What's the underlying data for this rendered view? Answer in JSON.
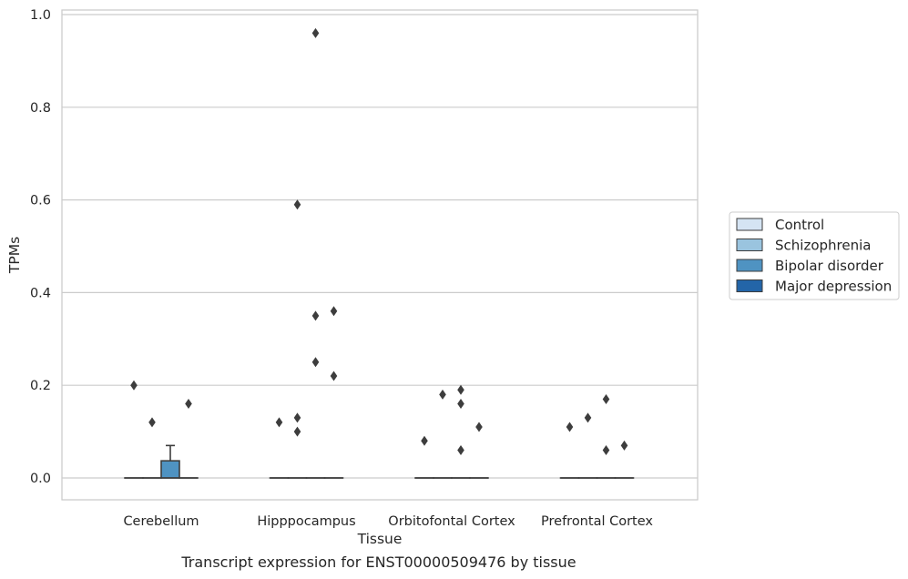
{
  "chart_data": {
    "type": "box",
    "caption": "Transcript expression for ENST00000509476 by tissue",
    "xlabel": "Tissue",
    "ylabel": "TPMs",
    "ylim": [
      -0.045,
      1.01
    ],
    "yticks": [
      0.0,
      0.2,
      0.4,
      0.6,
      0.8,
      1.0
    ],
    "ytick_labels": [
      "0.0",
      "0.2",
      "0.4",
      "0.6",
      "0.8",
      "1.0"
    ],
    "categories": [
      "Cerebellum",
      "Hipppocampus",
      "Orbitofontal Cortex",
      "Prefrontal Cortex"
    ],
    "grid": true,
    "legend_position": "right",
    "series": [
      {
        "name": "Control",
        "color": "#d5e4f3"
      },
      {
        "name": "Schizophrenia",
        "color": "#9ac4df"
      },
      {
        "name": "Bipolar disorder",
        "color": "#4f93c2"
      },
      {
        "name": "Major depression",
        "color": "#2365a8"
      }
    ],
    "boxes": [
      {
        "category": 0,
        "series": 0,
        "q1": 0,
        "median": 0,
        "q3": 0,
        "whisker_low": 0,
        "whisker_high": 0,
        "outliers": [
          0.2
        ]
      },
      {
        "category": 0,
        "series": 1,
        "q1": 0,
        "median": 0,
        "q3": 0,
        "whisker_low": 0,
        "whisker_high": 0,
        "outliers": [
          0.12
        ]
      },
      {
        "category": 0,
        "series": 2,
        "q1": 0,
        "median": 0,
        "q3": 0.037,
        "whisker_low": 0,
        "whisker_high": 0.07,
        "outliers": []
      },
      {
        "category": 0,
        "series": 3,
        "q1": 0,
        "median": 0,
        "q3": 0,
        "whisker_low": 0,
        "whisker_high": 0,
        "outliers": [
          0.16
        ]
      },
      {
        "category": 1,
        "series": 0,
        "q1": 0,
        "median": 0,
        "q3": 0,
        "whisker_low": 0,
        "whisker_high": 0,
        "outliers": [
          0.12
        ]
      },
      {
        "category": 1,
        "series": 1,
        "q1": 0,
        "median": 0,
        "q3": 0,
        "whisker_low": 0,
        "whisker_high": 0,
        "outliers": [
          0.59,
          0.13,
          0.1
        ]
      },
      {
        "category": 1,
        "series": 2,
        "q1": 0,
        "median": 0,
        "q3": 0,
        "whisker_low": 0,
        "whisker_high": 0,
        "outliers": [
          0.96,
          0.35,
          0.25
        ]
      },
      {
        "category": 1,
        "series": 3,
        "q1": 0,
        "median": 0,
        "q3": 0,
        "whisker_low": 0,
        "whisker_high": 0,
        "outliers": [
          0.36,
          0.22
        ]
      },
      {
        "category": 2,
        "series": 0,
        "q1": 0,
        "median": 0,
        "q3": 0,
        "whisker_low": 0,
        "whisker_high": 0,
        "outliers": [
          0.08
        ]
      },
      {
        "category": 2,
        "series": 1,
        "q1": 0,
        "median": 0,
        "q3": 0,
        "whisker_low": 0,
        "whisker_high": 0,
        "outliers": [
          0.18
        ]
      },
      {
        "category": 2,
        "series": 2,
        "q1": 0,
        "median": 0,
        "q3": 0,
        "whisker_low": 0,
        "whisker_high": 0,
        "outliers": [
          0.19,
          0.16,
          0.06
        ]
      },
      {
        "category": 2,
        "series": 3,
        "q1": 0,
        "median": 0,
        "q3": 0,
        "whisker_low": 0,
        "whisker_high": 0,
        "outliers": [
          0.11
        ]
      },
      {
        "category": 3,
        "series": 0,
        "q1": 0,
        "median": 0,
        "q3": 0,
        "whisker_low": 0,
        "whisker_high": 0,
        "outliers": [
          0.11
        ]
      },
      {
        "category": 3,
        "series": 1,
        "q1": 0,
        "median": 0,
        "q3": 0,
        "whisker_low": 0,
        "whisker_high": 0,
        "outliers": [
          0.13
        ]
      },
      {
        "category": 3,
        "series": 2,
        "q1": 0,
        "median": 0,
        "q3": 0,
        "whisker_low": 0,
        "whisker_high": 0,
        "outliers": [
          0.17,
          0.06
        ]
      },
      {
        "category": 3,
        "series": 3,
        "q1": 0,
        "median": 0,
        "q3": 0,
        "whisker_low": 0,
        "whisker_high": 0,
        "outliers": [
          0.07
        ]
      }
    ]
  }
}
